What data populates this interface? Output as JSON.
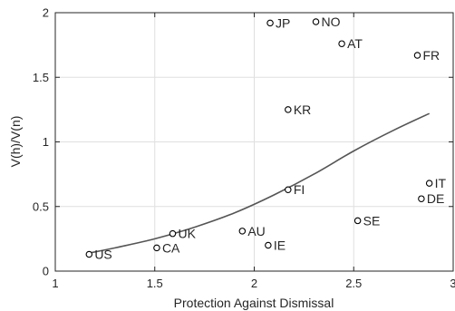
{
  "chart_data": {
    "type": "scatter",
    "title": "",
    "xlabel": "Protection Against Dismissal",
    "ylabel": "V(h)/V(n)",
    "xlim": [
      1,
      3
    ],
    "ylim": [
      0,
      2
    ],
    "xticks": [
      1,
      1.5,
      2,
      2.5,
      3
    ],
    "xtick_labels": [
      "1",
      "1.5",
      "2",
      "2.5",
      "3"
    ],
    "yticks": [
      0,
      0.5,
      1,
      1.5,
      2
    ],
    "ytick_labels": [
      "0",
      "0.5",
      "1",
      "1.5",
      "2"
    ],
    "grid": true,
    "legend": "none",
    "marker": "open-circle",
    "points": [
      {
        "label": "US",
        "x": 1.17,
        "y": 0.13
      },
      {
        "label": "CA",
        "x": 1.51,
        "y": 0.18
      },
      {
        "label": "UK",
        "x": 1.59,
        "y": 0.29
      },
      {
        "label": "AU",
        "x": 1.94,
        "y": 0.31
      },
      {
        "label": "IE",
        "x": 2.07,
        "y": 0.2
      },
      {
        "label": "FI",
        "x": 2.17,
        "y": 0.63
      },
      {
        "label": "KR",
        "x": 2.17,
        "y": 1.25
      },
      {
        "label": "JP",
        "x": 2.08,
        "y": 1.92
      },
      {
        "label": "NO",
        "x": 2.31,
        "y": 1.93
      },
      {
        "label": "AT",
        "x": 2.44,
        "y": 1.76
      },
      {
        "label": "SE",
        "x": 2.52,
        "y": 0.39
      },
      {
        "label": "FR",
        "x": 2.82,
        "y": 1.67
      },
      {
        "label": "IT",
        "x": 2.88,
        "y": 0.68
      },
      {
        "label": "DE",
        "x": 2.84,
        "y": 0.56
      }
    ],
    "fit_line": {
      "type": "curve",
      "x": [
        1.17,
        1.3,
        1.5,
        1.7,
        1.9,
        2.1,
        2.3,
        2.5,
        2.7,
        2.88
      ],
      "y": [
        0.14,
        0.18,
        0.25,
        0.34,
        0.45,
        0.59,
        0.75,
        0.93,
        1.09,
        1.22
      ]
    },
    "colors": {
      "axes": "#262626",
      "grid": "#dfdfdf",
      "marker": "#000000",
      "fit_line": "#555555"
    }
  }
}
